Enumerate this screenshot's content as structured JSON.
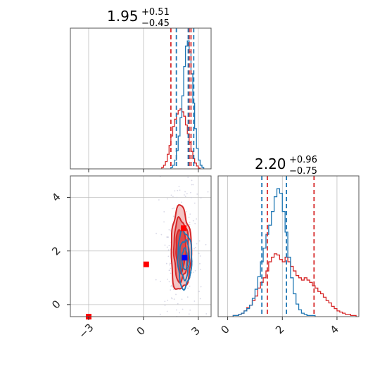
{
  "colors": {
    "red": "#d62728",
    "blue": "#1f77b4",
    "red_fill_1": "#f4c4c4",
    "red_fill_2": "#ea8f8f",
    "red_fill_3": "#dd4a4a",
    "truth_red": "#ff0000",
    "truth_blue": "#0000ff",
    "grid": "#bfbfbf"
  },
  "chart_data": [
    {
      "type": "histogram",
      "panel": "marginal-param-1",
      "title": {
        "value": "1.95",
        "plus": "+0.51",
        "minus": "−0.45"
      },
      "xlim": [
        -4.0,
        3.7
      ],
      "xticks": [
        -3,
        0,
        3
      ],
      "grid": true,
      "series": [
        {
          "color": "red",
          "bin_edges": [
            1.0,
            1.1,
            1.2,
            1.3,
            1.4,
            1.5,
            1.6,
            1.7,
            1.8,
            1.9,
            2.0,
            2.1,
            2.2,
            2.3,
            2.4,
            2.5,
            2.6,
            2.7,
            2.8,
            2.9,
            3.0,
            3.1
          ],
          "counts": [
            2,
            5,
            10,
            20,
            32,
            45,
            58,
            68,
            75,
            80,
            82,
            78,
            72,
            60,
            48,
            36,
            24,
            14,
            8,
            4,
            1
          ]
        },
        {
          "color": "blue",
          "bin_edges": [
            1.5,
            1.6,
            1.7,
            1.8,
            1.9,
            2.0,
            2.1,
            2.2,
            2.3,
            2.4,
            2.5,
            2.6,
            2.7,
            2.8,
            2.9,
            3.0,
            3.1,
            3.2,
            3.3
          ],
          "counts": [
            2,
            5,
            12,
            25,
            45,
            70,
            100,
            140,
            168,
            175,
            160,
            130,
            90,
            55,
            28,
            12,
            5,
            2
          ]
        }
      ],
      "quantile_lines": [
        {
          "color": "red",
          "x": [
            1.5,
            2.5,
            2.6
          ]
        },
        {
          "color": "blue",
          "x": [
            1.8,
            2.45,
            2.75
          ]
        }
      ]
    },
    {
      "type": "histogram",
      "panel": "marginal-param-2",
      "title": {
        "value": "2.20",
        "plus": "+0.96",
        "minus": "−0.75"
      },
      "xlim": [
        -0.35,
        4.8
      ],
      "xticks": [
        0,
        2,
        4
      ],
      "grid": true,
      "series": [
        {
          "color": "red",
          "bin_edges": [
            0.2,
            0.3,
            0.4,
            0.5,
            0.6,
            0.7,
            0.8,
            0.9,
            1.0,
            1.1,
            1.2,
            1.3,
            1.4,
            1.5,
            1.6,
            1.7,
            1.8,
            1.9,
            2.0,
            2.1,
            2.2,
            2.3,
            2.4,
            2.5,
            2.6,
            2.7,
            2.8,
            2.9,
            3.0,
            3.1,
            3.2,
            3.3,
            3.4,
            3.5,
            3.6,
            3.7,
            3.8,
            3.9,
            4.0,
            4.1,
            4.2,
            4.3,
            4.4,
            4.5,
            4.6,
            4.7
          ],
          "counts": [
            1,
            1,
            2,
            3,
            5,
            8,
            10,
            14,
            18,
            25,
            30,
            34,
            40,
            48,
            52,
            55,
            54,
            50,
            48,
            52,
            48,
            44,
            40,
            36,
            34,
            32,
            34,
            32,
            30,
            27,
            25,
            22,
            20,
            17,
            14,
            12,
            9,
            7,
            5,
            4,
            3,
            2,
            2,
            1,
            1
          ]
        },
        {
          "color": "blue",
          "bin_edges": [
            0.2,
            0.3,
            0.4,
            0.5,
            0.6,
            0.7,
            0.8,
            0.9,
            1.0,
            1.1,
            1.2,
            1.3,
            1.4,
            1.5,
            1.6,
            1.7,
            1.8,
            1.9,
            2.0,
            2.1,
            2.2,
            2.3,
            2.4,
            2.5,
            2.6,
            2.7,
            2.8,
            2.9,
            3.0,
            3.1,
            3.2
          ],
          "counts": [
            1,
            1,
            2,
            3,
            5,
            7,
            10,
            16,
            24,
            35,
            48,
            60,
            72,
            80,
            92,
            105,
            112,
            108,
            92,
            74,
            52,
            34,
            20,
            11,
            6,
            3,
            2,
            1,
            1,
            1
          ]
        }
      ],
      "quantile_lines": [
        {
          "color": "red",
          "x": [
            1.45,
            3.16
          ]
        },
        {
          "color": "blue",
          "x": [
            1.25,
            2.15
          ]
        }
      ]
    },
    {
      "type": "contour",
      "panel": "joint-param-1-param-2",
      "xlim": [
        -4.0,
        3.7
      ],
      "ylim": [
        -0.45,
        4.8
      ],
      "xticks": [
        -3,
        0,
        3
      ],
      "yticks": [
        0,
        2,
        4
      ],
      "grid": true,
      "series": [
        {
          "color": "red",
          "center": [
            2.05,
            2.05
          ],
          "filled_levels": [
            {
              "sx": 0.55,
              "sy": 1.55,
              "fill": "red_fill_1"
            },
            {
              "sx": 0.4,
              "sy": 1.15,
              "fill": "red_fill_2"
            },
            {
              "sx": 0.27,
              "sy": 0.78,
              "fill": "red_fill_3"
            }
          ]
        },
        {
          "color": "blue",
          "center": [
            2.25,
            1.7
          ],
          "line_levels": [
            {
              "sx": 0.38,
              "sy": 1.05
            },
            {
              "sx": 0.26,
              "sy": 0.72
            },
            {
              "sx": 0.14,
              "sy": 0.4
            }
          ]
        }
      ],
      "truth_markers": [
        {
          "color": "truth_red",
          "x": 0.15,
          "y": 1.5
        },
        {
          "color": "truth_red",
          "x": 2.2,
          "y": 2.85
        },
        {
          "color": "truth_red",
          "x": -3.0,
          "y": -0.45
        },
        {
          "color": "truth_blue",
          "x": 2.25,
          "y": 1.75
        }
      ]
    }
  ]
}
